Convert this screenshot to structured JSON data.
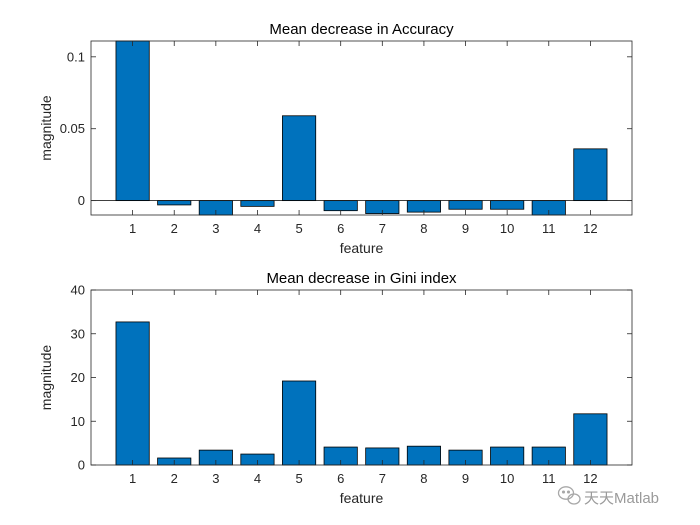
{
  "chart_data": [
    {
      "type": "bar",
      "title": "Mean decrease in Accuracy",
      "xlabel": "feature",
      "ylabel": "magnitude",
      "categories": [
        "1",
        "2",
        "3",
        "4",
        "5",
        "6",
        "7",
        "8",
        "9",
        "10",
        "11",
        "12"
      ],
      "values": [
        0.112,
        -0.003,
        -0.011,
        -0.004,
        0.059,
        -0.007,
        -0.009,
        -0.008,
        -0.006,
        -0.006,
        -0.01,
        0.036
      ],
      "xlim": [
        0,
        13
      ],
      "ylim": [
        -0.01,
        0.111
      ],
      "yticks": [
        0,
        0.05,
        0.1
      ],
      "ytick_labels": [
        "0",
        "0.05",
        "0.1"
      ],
      "baseline": 0,
      "bar_color": "#0072BD"
    },
    {
      "type": "bar",
      "title": "Mean decrease in Gini index",
      "xlabel": "feature",
      "ylabel": "magnitude",
      "categories": [
        "1",
        "2",
        "3",
        "4",
        "5",
        "6",
        "7",
        "8",
        "9",
        "10",
        "11",
        "12"
      ],
      "values": [
        32.7,
        1.6,
        3.4,
        2.5,
        19.2,
        4.1,
        3.9,
        4.3,
        3.4,
        4.1,
        4.1,
        11.7
      ],
      "xlim": [
        0,
        13
      ],
      "ylim": [
        0,
        40
      ],
      "yticks": [
        0,
        10,
        20,
        30,
        40
      ],
      "ytick_labels": [
        "0",
        "10",
        "20",
        "30",
        "40"
      ],
      "baseline": 0,
      "bar_color": "#0072BD"
    }
  ],
  "watermark": {
    "icon": "wechat-icon",
    "text": "天天Matlab"
  }
}
